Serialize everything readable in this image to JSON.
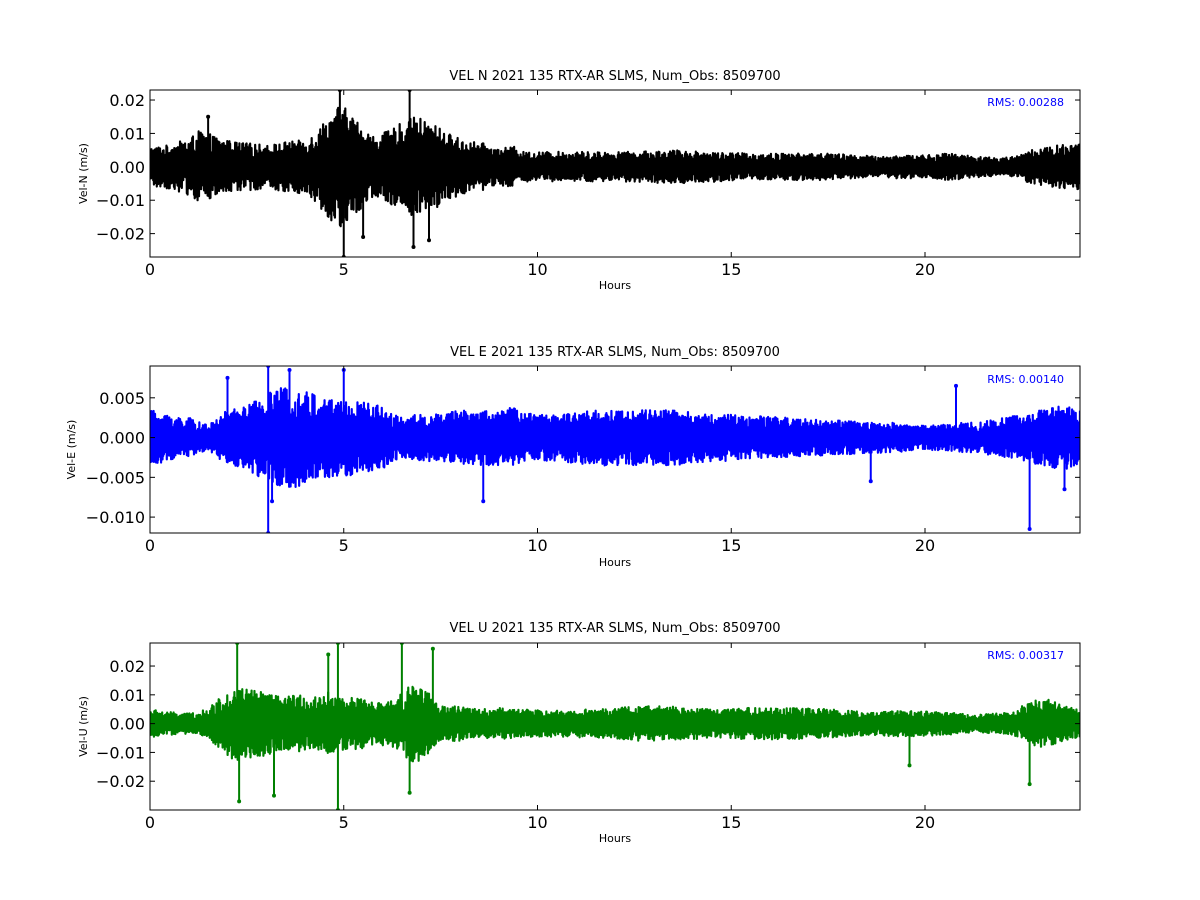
{
  "colors": {
    "background": "#ffffff",
    "axes": "#000000",
    "rms_text": "#0000ff"
  },
  "chart_data": [
    {
      "type": "line",
      "title": "VEL N 2021 135 RTX-AR  SLMS, Num_Obs: 8509700",
      "xlabel": "Hours",
      "ylabel": "Vel-N (m/s)",
      "annotation": "RMS:  0.00288",
      "color": "#000000",
      "xlim": [
        0,
        24
      ],
      "ylim": [
        -0.027,
        0.023
      ],
      "xticks": [
        0,
        5,
        10,
        15,
        20
      ],
      "xtick_labels": [
        "0",
        "5",
        "10",
        "15",
        "20"
      ],
      "yticks": [
        -0.02,
        -0.01,
        0.0,
        0.01,
        0.02
      ],
      "ytick_labels": [
        "−0.02",
        "−0.01",
        "0.00",
        "0.01",
        "0.02"
      ],
      "grid": false,
      "series": [
        {
          "envelope": {
            "hours": [
              0,
              0.5,
              1,
              1.3,
              1.8,
              2.2,
              2.6,
              3,
              3.5,
              4,
              4.2,
              4.6,
              4.9,
              5.1,
              5.5,
              5.8,
              6.2,
              6.6,
              6.9,
              7.3,
              7.7,
              8.1,
              8.6,
              9.0,
              9.4,
              9.6,
              10.5,
              11.5,
              12.5,
              13.5,
              14.5,
              15.5,
              16.5,
              17.5,
              18.3,
              18.8,
              19.3,
              20,
              20.6,
              21.1,
              21.6,
              22,
              22.5,
              23,
              23.5,
              24
            ],
            "amplitude": [
              0.006,
              0.0065,
              0.0085,
              0.011,
              0.0085,
              0.0075,
              0.007,
              0.0065,
              0.0075,
              0.008,
              0.01,
              0.015,
              0.019,
              0.017,
              0.012,
              0.009,
              0.011,
              0.014,
              0.015,
              0.013,
              0.01,
              0.008,
              0.007,
              0.0055,
              0.006,
              0.0045,
              0.0045,
              0.0045,
              0.0045,
              0.005,
              0.0045,
              0.004,
              0.004,
              0.004,
              0.0035,
              0.003,
              0.0035,
              0.0035,
              0.004,
              0.0035,
              0.003,
              0.0025,
              0.004,
              0.006,
              0.0065,
              0.0075
            ]
          },
          "spikes": [
            [
              4.9,
              0.023
            ],
            [
              5.0,
              -0.027
            ],
            [
              6.7,
              0.023
            ],
            [
              6.8,
              -0.024
            ],
            [
              5.5,
              -0.021
            ],
            [
              1.5,
              0.015
            ],
            [
              7.2,
              -0.022
            ]
          ]
        }
      ]
    },
    {
      "type": "line",
      "title": "VEL E 2021 135 RTX-AR  SLMS, Num_Obs: 8509700",
      "xlabel": "Hours",
      "ylabel": "Vel-E (m/s)",
      "annotation": "RMS:  0.00140",
      "color": "#0000ff",
      "xlim": [
        0,
        24
      ],
      "ylim": [
        -0.012,
        0.009
      ],
      "xticks": [
        0,
        5,
        10,
        15,
        20
      ],
      "xtick_labels": [
        "0",
        "5",
        "10",
        "15",
        "20"
      ],
      "yticks": [
        -0.01,
        -0.005,
        0.0,
        0.005
      ],
      "ytick_labels": [
        "−0.010",
        "−0.005",
        "0.000",
        "0.005"
      ],
      "grid": false,
      "series": [
        {
          "envelope": {
            "hours": [
              0,
              0.4,
              1,
              1.5,
              2,
              2.5,
              3,
              3.5,
              4,
              4.5,
              5,
              5.5,
              6,
              6.5,
              7,
              7.5,
              8,
              8.5,
              9,
              9.4,
              9.6,
              10.5,
              11.5,
              12.5,
              13.5,
              14.5,
              15.5,
              16.5,
              17.5,
              18.5,
              19.5,
              20,
              20.8,
              21.5,
              22,
              22.5,
              23,
              23.5,
              24
            ],
            "amplitude": [
              0.0035,
              0.003,
              0.0025,
              0.0015,
              0.0035,
              0.004,
              0.0055,
              0.0065,
              0.006,
              0.005,
              0.005,
              0.0045,
              0.004,
              0.0025,
              0.003,
              0.003,
              0.0035,
              0.0035,
              0.0035,
              0.0038,
              0.003,
              0.003,
              0.0035,
              0.0035,
              0.0035,
              0.003,
              0.0028,
              0.0025,
              0.0022,
              0.002,
              0.0018,
              0.0015,
              0.0018,
              0.002,
              0.0025,
              0.003,
              0.0035,
              0.004,
              0.004
            ]
          },
          "spikes": [
            [
              3.05,
              0.009
            ],
            [
              3.05,
              -0.012
            ],
            [
              3.15,
              -0.008
            ],
            [
              3.6,
              0.0085
            ],
            [
              5.0,
              0.0085
            ],
            [
              8.6,
              -0.008
            ],
            [
              18.6,
              -0.0055
            ],
            [
              20.8,
              0.0065
            ],
            [
              22.7,
              -0.0115
            ],
            [
              23.6,
              -0.0065
            ],
            [
              2.0,
              0.0075
            ]
          ]
        }
      ]
    },
    {
      "type": "line",
      "title": "VEL U 2021 135 RTX-AR  SLMS, Num_Obs: 8509700",
      "xlabel": "Hours",
      "ylabel": "Vel-U (m/s)",
      "annotation": "RMS:  0.00317",
      "color": "#008000",
      "xlim": [
        0,
        24
      ],
      "ylim": [
        -0.03,
        0.028
      ],
      "xticks": [
        0,
        5,
        10,
        15,
        20
      ],
      "xtick_labels": [
        "0",
        "5",
        "10",
        "15",
        "20"
      ],
      "yticks": [
        -0.02,
        -0.01,
        0.0,
        0.01,
        0.02
      ],
      "ytick_labels": [
        "−0.02",
        "−0.01",
        "0.00",
        "0.01",
        "0.02"
      ],
      "grid": false,
      "series": [
        {
          "envelope": {
            "hours": [
              0,
              0.5,
              1,
              1.5,
              1.8,
              2.2,
              2.6,
              3.0,
              3.4,
              3.8,
              4.2,
              4.6,
              5.0,
              5.4,
              5.8,
              6.2,
              6.5,
              6.8,
              7.1,
              7.5,
              8,
              8.5,
              9,
              9.5,
              10.5,
              11.5,
              12.5,
              13.5,
              14.5,
              15.5,
              16.5,
              17.5,
              18.5,
              19.5,
              20.5,
              21.3,
              21.8,
              22.3,
              22.7,
              23.2,
              23.6,
              24
            ],
            "amplitude": [
              0.005,
              0.004,
              0.0035,
              0.005,
              0.009,
              0.013,
              0.012,
              0.011,
              0.009,
              0.01,
              0.009,
              0.011,
              0.009,
              0.009,
              0.007,
              0.008,
              0.011,
              0.014,
              0.012,
              0.006,
              0.006,
              0.005,
              0.0055,
              0.005,
              0.0045,
              0.005,
              0.006,
              0.006,
              0.005,
              0.0055,
              0.0055,
              0.005,
              0.004,
              0.0045,
              0.004,
              0.003,
              0.0035,
              0.004,
              0.008,
              0.0085,
              0.006,
              0.005
            ]
          },
          "spikes": [
            [
              2.25,
              0.028
            ],
            [
              2.3,
              -0.027
            ],
            [
              4.6,
              0.024
            ],
            [
              4.85,
              0.028
            ],
            [
              4.85,
              -0.03
            ],
            [
              6.5,
              0.028
            ],
            [
              6.7,
              -0.024
            ],
            [
              7.3,
              0.026
            ],
            [
              19.6,
              -0.0145
            ],
            [
              22.7,
              -0.021
            ],
            [
              3.2,
              -0.025
            ]
          ]
        }
      ]
    }
  ]
}
